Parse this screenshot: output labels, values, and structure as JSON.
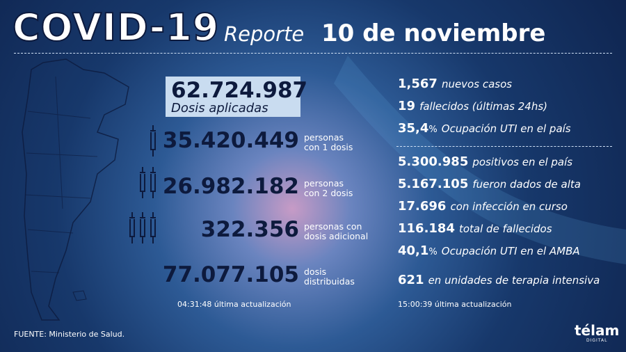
{
  "header": {
    "title": "COVID-19",
    "subtitle_prefix": "Reporte",
    "subtitle_date": "10 de noviembre"
  },
  "vaccination": {
    "total": {
      "value": "62.724.987",
      "label": "Dosis aplicadas"
    },
    "items": [
      {
        "value": "35.420.449",
        "label": [
          "personas",
          "con 1 dosis"
        ]
      },
      {
        "value": "26.982.182",
        "label": [
          "personas",
          "con 2 dosis"
        ]
      },
      {
        "value": "322.356",
        "label": [
          "personas con",
          "dosis adicional"
        ]
      },
      {
        "value": "77.077.105",
        "label": [
          "dosis",
          "distribuidas"
        ]
      }
    ],
    "update_time": "04:31:48",
    "update_label": "última actualización"
  },
  "cases": {
    "daily": [
      {
        "value": "1,567",
        "unit": "",
        "label": "nuevos casos"
      },
      {
        "value": "19",
        "unit": "",
        "label": "fallecidos (últimas 24hs)"
      },
      {
        "value": "35,4",
        "unit": "%",
        "label": "Ocupación UTI en el país"
      }
    ],
    "totals": [
      {
        "value": "5.300.985",
        "unit": "",
        "label": "positivos en el país"
      },
      {
        "value": "5.167.105",
        "unit": "",
        "label": "fueron dados de alta"
      },
      {
        "value": "17.696",
        "unit": "",
        "label": "con infección en curso"
      },
      {
        "value": "116.184",
        "unit": "",
        "label": "total de fallecidos"
      },
      {
        "value": "40,1",
        "unit": "%",
        "label": "Ocupación UTI en el AMBA"
      },
      {
        "value": "621",
        "unit": "",
        "label": "en unidades de terapia intensiva"
      }
    ],
    "update_time": "15:00:39",
    "update_label": "última actualización"
  },
  "footer": {
    "source": "FUENTE: Ministerio de Salud.",
    "logo": "télam",
    "logo_sub": "DIGITAL"
  }
}
